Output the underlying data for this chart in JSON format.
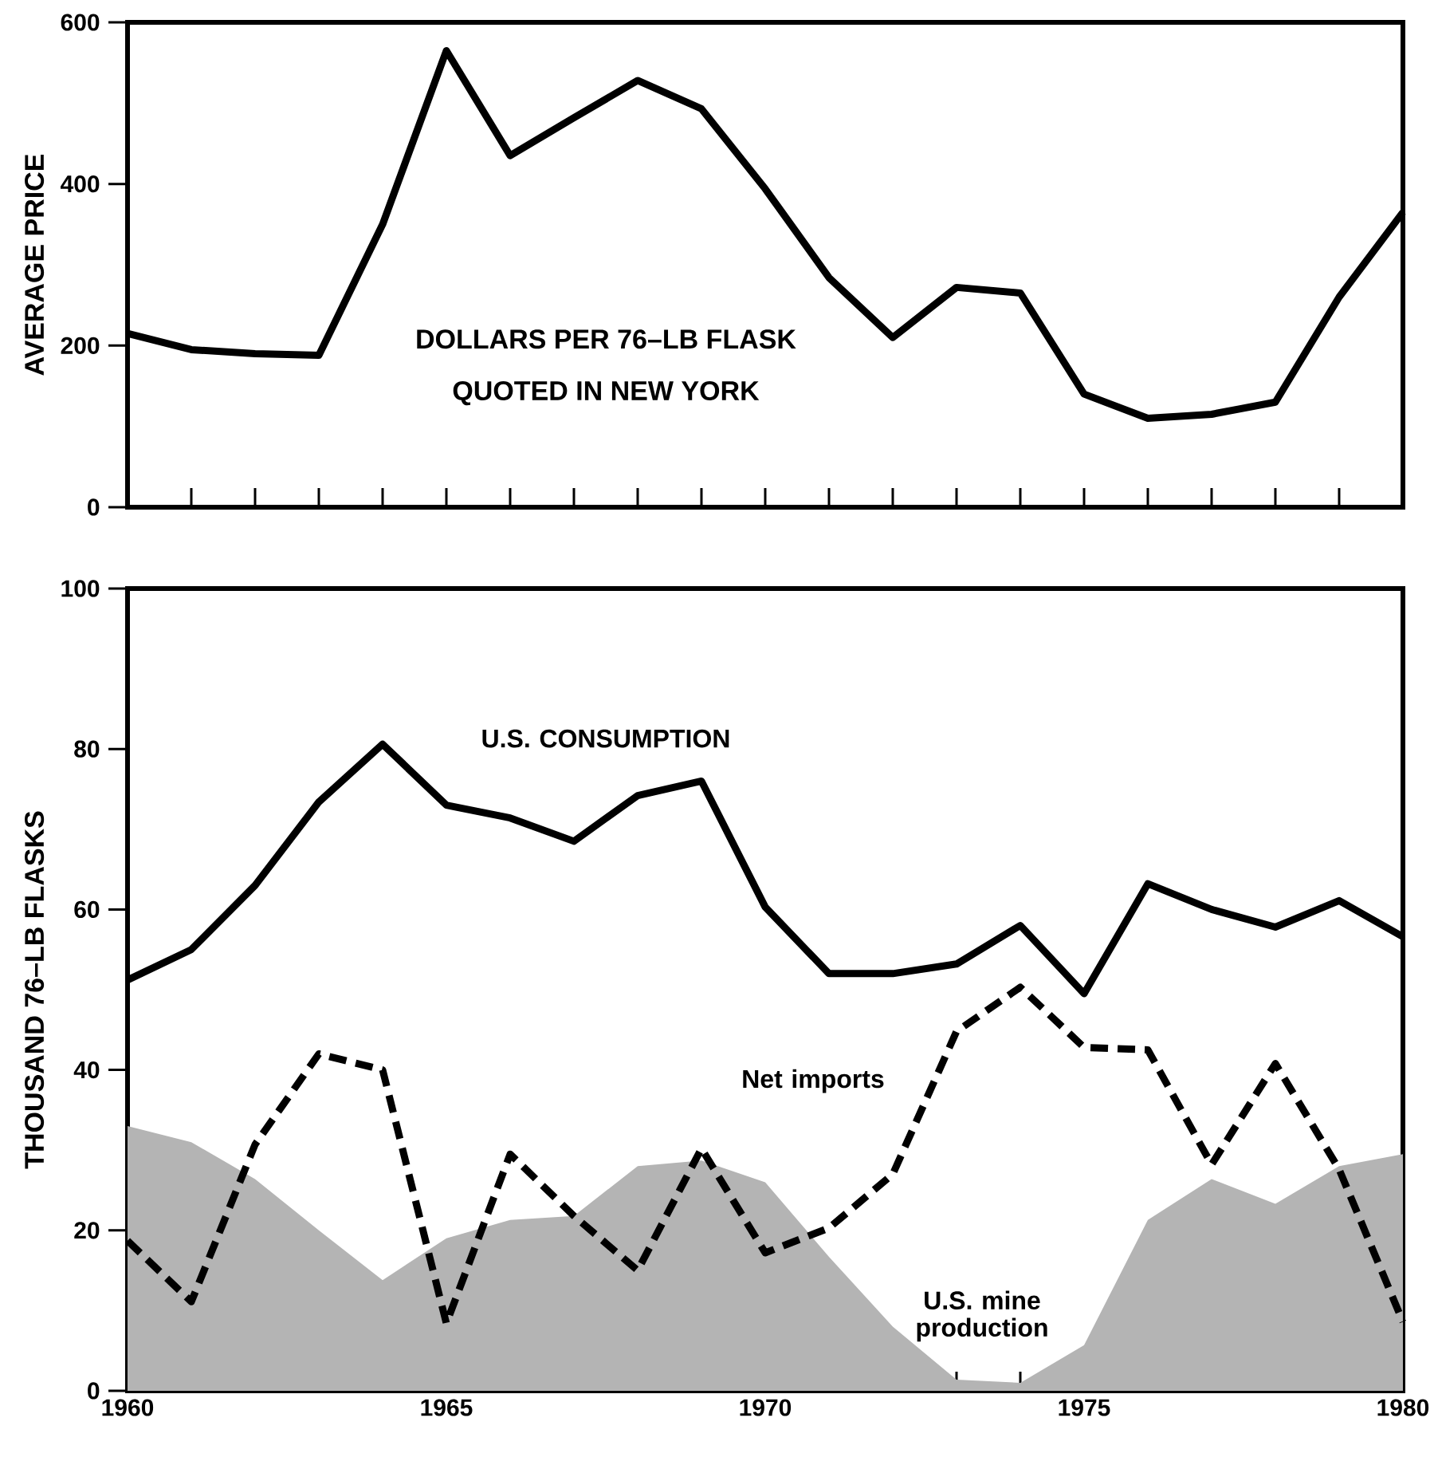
{
  "chart_data": [
    {
      "type": "line",
      "ylabel": "AVERAGE PRICE",
      "annotations": [
        "DOLLARS PER 76–LB FLASK",
        "QUOTED IN NEW YORK"
      ],
      "xlim": [
        1960,
        1980
      ],
      "ylim": [
        0,
        600
      ],
      "yticks": [
        0,
        200,
        400,
        600
      ],
      "tick_labels": "y",
      "xticks": [
        {
          "value": 1961,
          "label": null
        },
        {
          "value": 1962,
          "label": null
        },
        {
          "value": 1963,
          "label": null
        },
        {
          "value": 1964,
          "label": null
        },
        {
          "value": 1965,
          "label": null
        },
        {
          "value": 1966,
          "label": null
        },
        {
          "value": 1967,
          "label": null
        },
        {
          "value": 1968,
          "label": null
        },
        {
          "value": 1969,
          "label": null
        },
        {
          "value": 1970,
          "label": null
        },
        {
          "value": 1971,
          "label": null
        },
        {
          "value": 1972,
          "label": null
        },
        {
          "value": 1973,
          "label": null
        },
        {
          "value": 1974,
          "label": null
        },
        {
          "value": 1975,
          "label": null
        },
        {
          "value": 1976,
          "label": null
        },
        {
          "value": 1977,
          "label": null
        },
        {
          "value": 1978,
          "label": null
        },
        {
          "value": 1979,
          "label": null
        }
      ],
      "series": [
        {
          "color": "#000000",
          "x": [
            1960,
            1961,
            1962,
            1963,
            1964,
            1965,
            1966,
            1967,
            1968,
            1969,
            1970,
            1971,
            1972,
            1973,
            1974,
            1975,
            1976,
            1977,
            1978,
            1979,
            1980
          ],
          "values": [
            215,
            195,
            190,
            188,
            350,
            565,
            435,
            482,
            528,
            493,
            394,
            284,
            210,
            272,
            265,
            140,
            110,
            115,
            130,
            260,
            365
          ]
        }
      ]
    },
    {
      "type": "line",
      "ylabel": "THOUSAND 76–LB FLASKS",
      "xlim": [
        1960,
        1980
      ],
      "ylim": [
        0,
        100
      ],
      "yticks": [
        0,
        20,
        40,
        60,
        80,
        100
      ],
      "xticks": [
        1960,
        {
          "value": 1961,
          "label": null
        },
        {
          "value": 1962,
          "label": null
        },
        {
          "value": 1963,
          "label": null
        },
        {
          "value": 1964,
          "label": null
        },
        1965,
        {
          "value": 1966,
          "label": null
        },
        {
          "value": 1967,
          "label": null
        },
        {
          "value": 1968,
          "label": null
        },
        {
          "value": 1969,
          "label": null
        },
        1970,
        {
          "value": 1971,
          "label": null
        },
        {
          "value": 1972,
          "label": null
        },
        {
          "value": 1973,
          "label": null
        },
        {
          "value": 1974,
          "label": null
        },
        1975,
        {
          "value": 1976,
          "label": null
        },
        {
          "value": 1977,
          "label": null
        },
        {
          "value": 1978,
          "label": null
        },
        {
          "value": 1979,
          "label": null
        },
        1980
      ],
      "series": [
        {
          "type": "area",
          "name": "U.S. mine production",
          "color": "#b4b4b4",
          "x": [
            1960,
            1961,
            1962,
            1963,
            1964,
            1965,
            1966,
            1967,
            1968,
            1969,
            1970,
            1971,
            1972,
            1973,
            1974,
            1975,
            1976,
            1977,
            1978,
            1979,
            1980
          ],
          "values": [
            33,
            31,
            26.4,
            20,
            13.8,
            19,
            21.3,
            21.8,
            28,
            28.7,
            26,
            16.7,
            8,
            1.4,
            1,
            5.7,
            21.3,
            26.4,
            23.3,
            28,
            29.5
          ]
        },
        {
          "type": "line",
          "name": "U.S. CONSUMPTION",
          "color": "#000000",
          "x": [
            1960,
            1961,
            1962,
            1963,
            1964,
            1965,
            1966,
            1967,
            1968,
            1969,
            1970,
            1971,
            1972,
            1973,
            1974,
            1975,
            1976,
            1977,
            1978,
            1979,
            1980
          ],
          "values": [
            51.2,
            55,
            63,
            73.4,
            80.6,
            73,
            71.4,
            68.5,
            74.2,
            76,
            60.3,
            52,
            52,
            53.2,
            58,
            49.5,
            63.2,
            60,
            57.8,
            61.1,
            56.6
          ]
        },
        {
          "type": "line",
          "name": "Net imports",
          "color": "#000000",
          "line_style": "dashed",
          "x": [
            1960,
            1961,
            1962,
            1963,
            1964,
            1965,
            1966,
            1967,
            1968,
            1969,
            1970,
            1971,
            1972,
            1973,
            1974,
            1975,
            1976,
            1977,
            1978,
            1979,
            1980
          ],
          "values": [
            18.7,
            11.1,
            30.7,
            42,
            40,
            8.4,
            29.5,
            21.8,
            15,
            30.2,
            17.2,
            20.3,
            27,
            44.8,
            50.3,
            42.8,
            42.5,
            28.2,
            40.8,
            27.6,
            8.6
          ]
        }
      ]
    }
  ]
}
